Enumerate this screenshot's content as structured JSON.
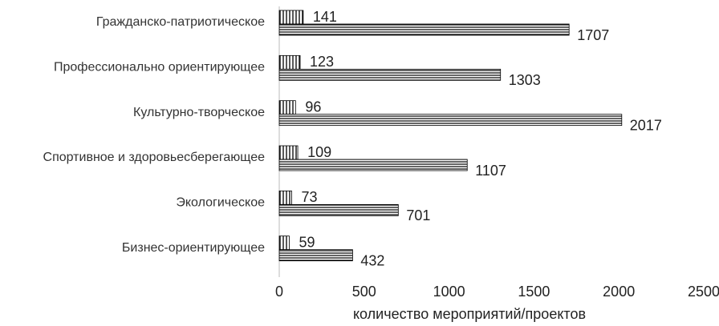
{
  "chart_data": {
    "type": "bar",
    "orientation": "horizontal",
    "categories": [
      "Гражданско-патриотическое",
      "Профессионально  ориентирующее",
      "Культурно-творческое",
      "Спортивное  и здоровьесберегающее",
      "Экологическое",
      "Бизнес-ориентирующее"
    ],
    "series": [
      {
        "pattern": "vertical-lines",
        "color": "#000000",
        "values": [
          141,
          123,
          96,
          109,
          73,
          59
        ]
      },
      {
        "pattern": "horizontal-lines",
        "color": "#000000",
        "values": [
          1707,
          1303,
          2017,
          1107,
          701,
          432
        ]
      }
    ],
    "xlim": [
      0,
      2500
    ],
    "xticks": [
      0,
      500,
      1000,
      1500,
      2000,
      2500
    ],
    "xlabel": "количество  мероприятий/проектов",
    "grid": false
  }
}
